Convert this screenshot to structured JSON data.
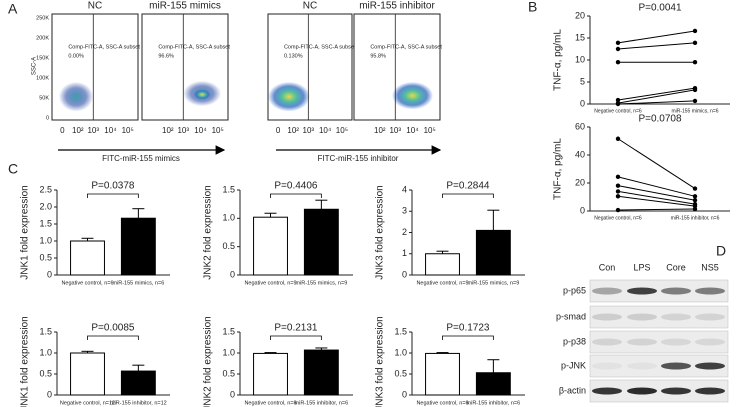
{
  "panel_labels": [
    "A",
    "B",
    "C",
    "D"
  ],
  "flow": {
    "y_label": "SSC-A",
    "yticks": [
      "250K",
      "200K",
      "150K",
      "100K",
      "50K",
      "0"
    ],
    "xticks": [
      "0",
      "10²",
      "10³",
      "10⁴",
      "10⁵"
    ],
    "panels": [
      {
        "title": "NC",
        "gate": "Comp-FITC-A, SSC-A subset",
        "percent": "0.00%"
      },
      {
        "title": "miR-155 mimics",
        "gate": "Comp-FITC-A, SSC-A subset",
        "percent": "96.6%"
      },
      {
        "title": "NC",
        "gate": "Comp-FITC-A, SSC-A subset",
        "percent": "0.130%"
      },
      {
        "title": "miR-155 inhibitor",
        "gate": "Comp-FITC-A, SSC-A subset",
        "percent": "95.8%"
      }
    ],
    "arrows": [
      "FITC-miR-155 mimics",
      "FITC-miR-155 inhibitor"
    ]
  },
  "chart_data": [
    {
      "type": "paired",
      "title": "P=0.0041",
      "y_label": "TNF-α, pg/mL",
      "categories": [
        "Negative control, n=6",
        "miR-155 mimics, n=6"
      ],
      "series": [
        {
          "values": [
            13.9,
            16.6
          ]
        },
        {
          "values": [
            12.5,
            13.9
          ]
        },
        {
          "values": [
            9.5,
            9.5
          ]
        },
        {
          "values": [
            0.9,
            3.6
          ]
        },
        {
          "values": [
            0.2,
            3.2
          ]
        },
        {
          "values": [
            0,
            0.7
          ]
        }
      ],
      "ylim": [
        0,
        20
      ],
      "yticks": [
        0,
        5,
        10,
        15,
        20
      ]
    },
    {
      "type": "paired",
      "title": "P=0.0708",
      "y_label": "TNF-α, pg/mL",
      "categories": [
        "Negative control, n=6",
        "miR-155 inhibitor, n=6"
      ],
      "series": [
        {
          "values": [
            51.6,
            16
          ]
        },
        {
          "values": [
            24.4,
            10.5
          ]
        },
        {
          "values": [
            18.1,
            7.7
          ]
        },
        {
          "values": [
            14,
            4.9
          ]
        },
        {
          "values": [
            10.5,
            3.5
          ]
        },
        {
          "values": [
            0.7,
            1.4
          ]
        }
      ],
      "ylim": [
        0,
        60
      ],
      "yticks": [
        0,
        20,
        40,
        60
      ]
    },
    {
      "type": "bar",
      "title": "P=0.0378",
      "y_label": "JNK1 fold expression",
      "categories": [
        "Negative control, n=6",
        "miR-155 mimics, n=6"
      ],
      "values": [
        1.0,
        1.67
      ],
      "errors": [
        0.08,
        0.28
      ],
      "colors": [
        "#ffffff",
        "#000000"
      ],
      "ylim": [
        0,
        2.5
      ],
      "yticks": [
        0,
        0.5,
        {
          "value": 1,
          "label": "1.0"
        },
        1.5,
        {
          "value": 2,
          "label": "2.0"
        },
        2.5
      ]
    },
    {
      "type": "bar",
      "title": "P=0.4406",
      "y_label": "JNK2 fold expression",
      "categories": [
        "Negative control, n=9",
        "miR-155 mimics, n=9"
      ],
      "values": [
        1.02,
        1.16
      ],
      "errors": [
        0.07,
        0.16
      ],
      "colors": [
        "#ffffff",
        "#000000"
      ],
      "ylim": [
        0,
        1.5
      ],
      "yticks": [
        0,
        0.5,
        {
          "value": 1,
          "label": "1.0"
        },
        1.5
      ]
    },
    {
      "type": "bar",
      "title": "P=0.2844",
      "y_label": "JNK3 fold expression",
      "categories": [
        "Negative control, n=9",
        "miR-155 mimics, n=9"
      ],
      "values": [
        1.0,
        2.1
      ],
      "errors": [
        0.12,
        0.95
      ],
      "colors": [
        "#ffffff",
        "#000000"
      ],
      "ylim": [
        0,
        4
      ],
      "yticks": [
        0,
        1,
        2,
        3,
        4
      ]
    },
    {
      "type": "bar",
      "title": "P=0.0085",
      "y_label": "JNK1 fold expression",
      "categories": [
        "Negative control, n=12",
        "miR-155 inhibitor, n=12"
      ],
      "values": [
        1.0,
        0.57
      ],
      "errors": [
        0.04,
        0.14
      ],
      "colors": [
        "#ffffff",
        "#000000"
      ],
      "ylim": [
        0,
        1.5
      ],
      "yticks": [
        0,
        0.5,
        {
          "value": 1,
          "label": "1.0"
        },
        1.5
      ]
    },
    {
      "type": "bar",
      "title": "P=0.2131",
      "y_label": "JNK2 fold expression",
      "categories": [
        "Negative control, n=6",
        "miR-155 inhibitor, n=6"
      ],
      "values": [
        0.99,
        1.07
      ],
      "errors": [
        0.02,
        0.05
      ],
      "colors": [
        "#ffffff",
        "#000000"
      ],
      "ylim": [
        0,
        1.5
      ],
      "yticks": [
        0,
        0.5,
        {
          "value": 1,
          "label": "1.0"
        },
        1.5
      ]
    },
    {
      "type": "bar",
      "title": "P=0.1723",
      "y_label": "JNK3 fold expression",
      "categories": [
        "Negative control, n=6",
        "miR-155 inhibitor, n=6"
      ],
      "values": [
        0.99,
        0.53
      ],
      "errors": [
        0.02,
        0.31
      ],
      "colors": [
        "#ffffff",
        "#000000"
      ],
      "ylim": [
        0,
        1.5
      ],
      "yticks": [
        0,
        0.5,
        {
          "value": 1,
          "label": "1.0"
        },
        1.5
      ]
    }
  ],
  "western": {
    "columns": [
      "Con",
      "LPS",
      "Core",
      "NS5"
    ],
    "rows": [
      "p-p65",
      "p-smad",
      "p-p38",
      "p-JNK",
      "β-actin"
    ]
  }
}
